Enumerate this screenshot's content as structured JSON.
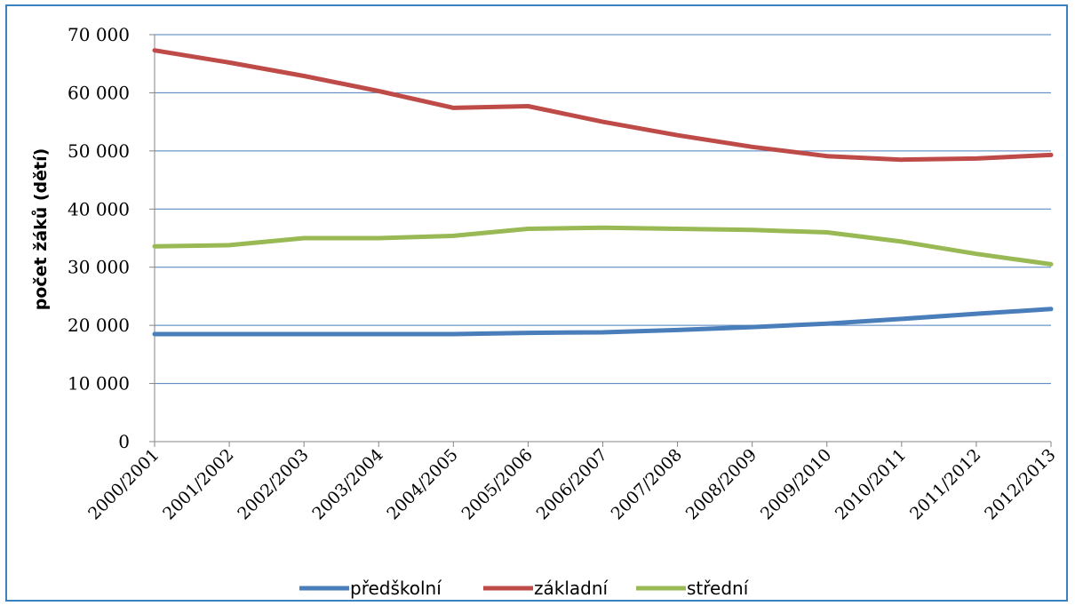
{
  "chart_data": {
    "type": "line",
    "title": "",
    "xlabel": "",
    "ylabel": "počet žáků (dětí)",
    "ylim": [
      0,
      70000
    ],
    "yticks": [
      0,
      10000,
      20000,
      30000,
      40000,
      50000,
      60000,
      70000
    ],
    "ytick_labels": [
      "0",
      "10 000",
      "20 000",
      "30 000",
      "40 000",
      "50 000",
      "60 000",
      "70 000"
    ],
    "categories": [
      "2000/2001",
      "2001/2002",
      "2002/2003",
      "2003/2004",
      "2004/2005",
      "2005/2006",
      "2006/2007",
      "2007/2008",
      "2008/2009",
      "2009/2010",
      "2010/2011",
      "2011/2012",
      "2012/2013"
    ],
    "grid": true,
    "legend_position": "bottom",
    "series": [
      {
        "name": "předškolní",
        "color": "#4a7ebb",
        "values": [
          18500,
          18500,
          18500,
          18500,
          18500,
          18700,
          18800,
          19200,
          19700,
          20300,
          21100,
          22000,
          22800
        ]
      },
      {
        "name": "základní",
        "color": "#be4b48",
        "values": [
          67300,
          65200,
          62900,
          60300,
          57400,
          57700,
          55000,
          52700,
          50700,
          49100,
          48500,
          48700,
          49300
        ]
      },
      {
        "name": "střední",
        "color": "#98b954",
        "values": [
          33600,
          33800,
          35000,
          35000,
          35400,
          36600,
          36800,
          36600,
          36400,
          36000,
          34400,
          32300,
          30500
        ]
      }
    ]
  }
}
